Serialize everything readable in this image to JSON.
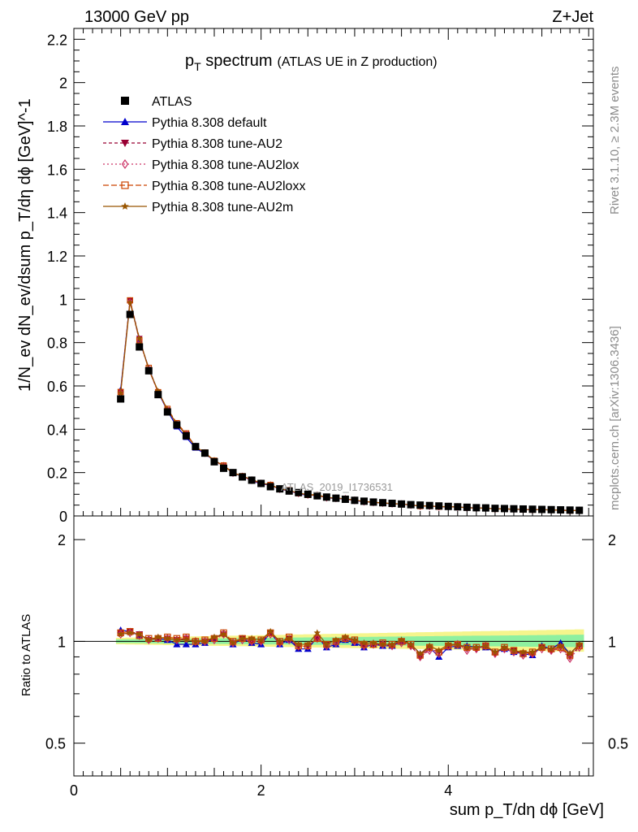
{
  "header": {
    "left": "13000 GeV pp",
    "right": "Z+Jet"
  },
  "side_labels": {
    "rivet": "Rivet 3.1.10, ≥ 2.3M events",
    "mcplots": "mcplots.cern.ch [arXiv:1306.3436]"
  },
  "chart_data": {
    "type": "line",
    "title_main": "p",
    "title_sub": "T",
    "title_word": " spectrum",
    "title_extra": "(ATLAS UE in Z production)",
    "watermark": "ATLAS_2019_I1736531",
    "ylabel": "1/N_ev dN_ev/dsum p_T/dη dϕ [GeV]^-1",
    "ratio_ylabel": "Ratio to ATLAS",
    "xlabel": "sum p_T/dη dϕ [GeV]",
    "xlim": [
      0,
      5.55
    ],
    "ylim": [
      0,
      2.25
    ],
    "ratio_ylim": [
      0.4,
      2.35
    ],
    "ratio_log": true,
    "x_ticks": [
      "0",
      "2",
      "4"
    ],
    "y_ticks": [
      "0",
      "0.2",
      "0.4",
      "0.6",
      "0.8",
      "1",
      "1.2",
      "1.4",
      "1.6",
      "1.8",
      "2",
      "2.2"
    ],
    "ratio_ticks": [
      "0.5",
      "1",
      "2"
    ],
    "x": [
      0.5,
      0.6,
      0.7,
      0.8,
      0.9,
      1.0,
      1.1,
      1.2,
      1.3,
      1.4,
      1.5,
      1.6,
      1.7,
      1.8,
      1.9,
      2.0,
      2.1,
      2.2,
      2.3,
      2.4,
      2.5,
      2.6,
      2.7,
      2.8,
      2.9,
      3.0,
      3.1,
      3.2,
      3.3,
      3.4,
      3.5,
      3.6,
      3.7,
      3.8,
      3.9,
      4.0,
      4.1,
      4.2,
      4.3,
      4.4,
      4.5,
      4.6,
      4.7,
      4.8,
      4.9,
      5.0,
      5.1,
      5.2,
      5.3,
      5.4
    ],
    "atlas": [
      0.54,
      0.93,
      0.78,
      0.67,
      0.56,
      0.48,
      0.42,
      0.37,
      0.32,
      0.29,
      0.25,
      0.22,
      0.2,
      0.18,
      0.165,
      0.15,
      0.135,
      0.125,
      0.115,
      0.108,
      0.1,
      0.093,
      0.087,
      0.082,
      0.077,
      0.072,
      0.068,
      0.064,
      0.061,
      0.058,
      0.055,
      0.052,
      0.05,
      0.048,
      0.046,
      0.044,
      0.042,
      0.04,
      0.038,
      0.037,
      0.035,
      0.034,
      0.033,
      0.032,
      0.031,
      0.03,
      0.029,
      0.028,
      0.027,
      0.026
    ],
    "series": [
      {
        "name": "Pythia 8.308 default",
        "color": "#0000cc",
        "marker": "triangle-up",
        "dash": "",
        "ratio": [
          1.08,
          1.07,
          1.04,
          1.02,
          1.02,
          1.01,
          0.98,
          0.98,
          0.98,
          0.99,
          1.02,
          1.06,
          0.98,
          1.02,
          0.99,
          0.98,
          1.06,
          0.98,
          1.01,
          0.95,
          0.95,
          1.03,
          0.96,
          0.98,
          1.01,
          0.99,
          0.96,
          0.98,
          0.97,
          0.97,
          1.0,
          0.98,
          0.92,
          0.96,
          0.9,
          0.96,
          0.97,
          0.97,
          0.96,
          0.96,
          0.93,
          0.95,
          0.93,
          0.92,
          0.91,
          0.97,
          0.95,
          0.99,
          0.92,
          0.98
        ]
      },
      {
        "name": "Pythia 8.308 tune-AU2",
        "color": "#990033",
        "marker": "triangle-down",
        "dash": "4,3",
        "ratio": [
          1.06,
          1.07,
          1.05,
          1.01,
          1.02,
          1.02,
          1.01,
          1.02,
          0.99,
          1.0,
          1.02,
          1.05,
          0.99,
          1.02,
          1.0,
          1.0,
          1.06,
          0.99,
          1.02,
          0.96,
          0.97,
          1.02,
          0.98,
          1.0,
          1.02,
          1.0,
          0.97,
          0.98,
          0.98,
          0.97,
          1.0,
          0.97,
          0.9,
          0.95,
          0.93,
          0.97,
          0.98,
          0.95,
          0.95,
          0.97,
          0.92,
          0.95,
          0.94,
          0.92,
          0.92,
          0.96,
          0.94,
          0.96,
          0.9,
          0.97
        ]
      },
      {
        "name": "Pythia 8.308 tune-AU2lox",
        "color": "#cc3366",
        "marker": "diamond-open",
        "dash": "2,3",
        "ratio": [
          1.05,
          1.06,
          1.04,
          1.01,
          1.02,
          1.02,
          1.01,
          1.02,
          1.0,
          1.0,
          1.01,
          1.05,
          0.99,
          1.01,
          1.0,
          1.0,
          1.05,
          0.99,
          1.01,
          0.97,
          0.97,
          1.02,
          0.97,
          0.99,
          1.02,
          1.0,
          0.97,
          0.98,
          0.98,
          0.97,
          0.99,
          0.97,
          0.9,
          0.94,
          0.92,
          0.97,
          0.98,
          0.94,
          0.95,
          0.97,
          0.92,
          0.95,
          0.93,
          0.91,
          0.92,
          0.95,
          0.94,
          0.95,
          0.89,
          0.96
        ]
      },
      {
        "name": "Pythia 8.308 tune-AU2loxx",
        "color": "#cc4400",
        "marker": "square-open",
        "dash": "7,3",
        "ratio": [
          1.06,
          1.07,
          1.04,
          1.02,
          1.02,
          1.03,
          1.02,
          1.03,
          1.0,
          1.01,
          1.02,
          1.06,
          1.0,
          1.02,
          1.01,
          1.01,
          1.06,
          1.0,
          1.03,
          0.97,
          0.97,
          1.02,
          0.98,
          1.0,
          1.02,
          1.01,
          0.98,
          0.98,
          0.99,
          0.98,
          1.0,
          0.98,
          0.91,
          0.96,
          0.93,
          0.97,
          0.98,
          0.96,
          0.96,
          0.97,
          0.93,
          0.96,
          0.94,
          0.92,
          0.93,
          0.96,
          0.95,
          0.96,
          0.91,
          0.97
        ]
      },
      {
        "name": "Pythia 8.308 tune-AU2m",
        "color": "#995500",
        "marker": "star",
        "dash": "",
        "ratio": [
          1.05,
          1.06,
          1.05,
          1.01,
          1.03,
          1.02,
          1.01,
          1.01,
          1.0,
          1.0,
          1.03,
          1.05,
          0.99,
          1.02,
          1.02,
          1.01,
          1.07,
          1.0,
          1.02,
          0.98,
          0.98,
          1.06,
          0.98,
          1.01,
          1.03,
          1.01,
          0.99,
          0.99,
          0.98,
          0.98,
          1.01,
          0.98,
          0.92,
          0.97,
          0.94,
          0.98,
          0.98,
          0.96,
          0.96,
          0.97,
          0.93,
          0.96,
          0.94,
          0.93,
          0.93,
          0.96,
          0.95,
          0.97,
          0.92,
          0.98
        ]
      }
    ]
  }
}
